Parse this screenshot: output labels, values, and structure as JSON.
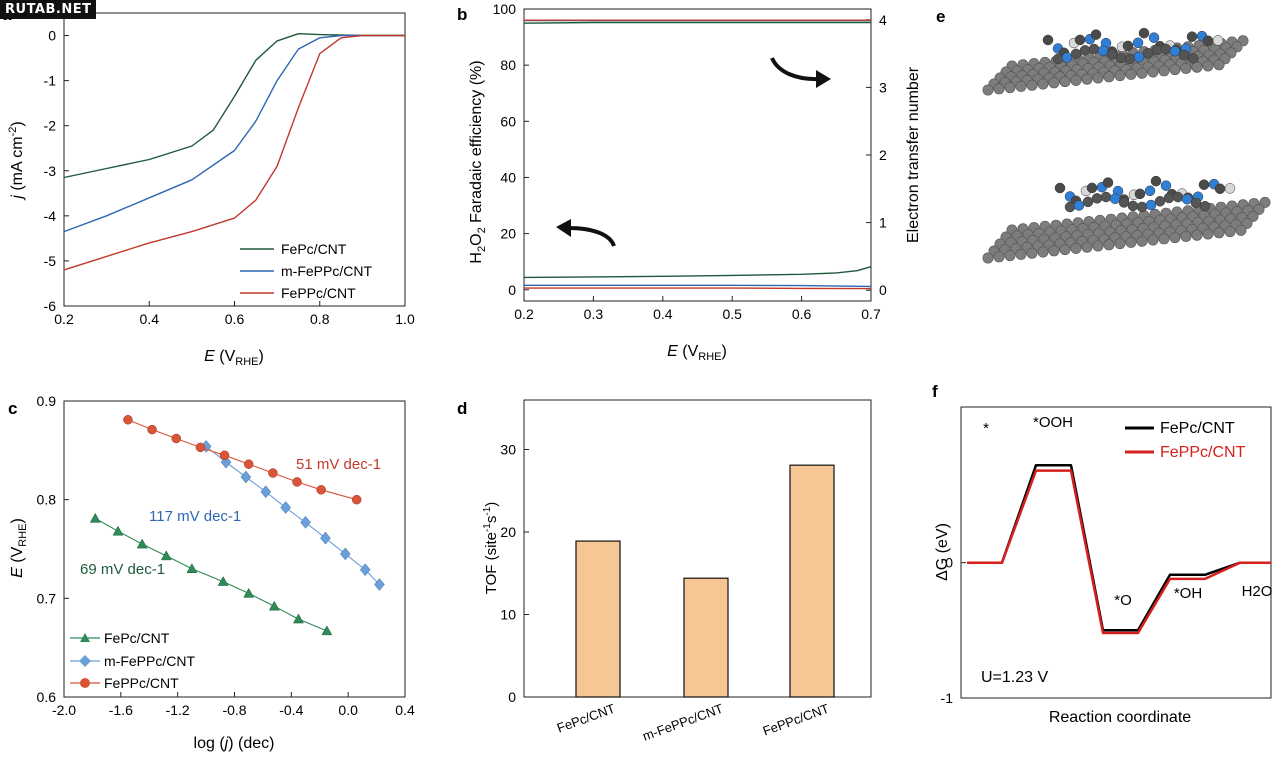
{
  "watermark": "RUTAB.NET",
  "panels": {
    "a": "a",
    "b": "b",
    "c": "c",
    "d": "d",
    "e": "e",
    "f": "f"
  },
  "chart_data": [
    {
      "id": "a",
      "type": "line",
      "xlabel": "E (VRHE)",
      "ylabel": "j (mA cm-2)",
      "xlim": [
        0.2,
        1.0
      ],
      "ylim": [
        -6,
        0.5
      ],
      "xticks": [
        0.2,
        0.4,
        0.6,
        0.8,
        1.0
      ],
      "xtick_labels": [
        "0.2",
        "0.4",
        "0.6",
        "0.8",
        "1.0"
      ],
      "yticks": [
        0,
        -1,
        -2,
        -3,
        -4,
        -5,
        -6
      ],
      "ytick_labels": [
        "0",
        "-1",
        "-2",
        "-3",
        "-4",
        "-5",
        "-6"
      ],
      "legend_position": "bottom-right",
      "series": [
        {
          "name": "FePc/CNT",
          "color": "#1d5a3a",
          "x": [
            0.2,
            0.3,
            0.4,
            0.5,
            0.55,
            0.6,
            0.65,
            0.7,
            0.75,
            0.8,
            0.9,
            1.0
          ],
          "y": [
            -3.15,
            -2.95,
            -2.75,
            -2.45,
            -2.1,
            -1.35,
            -0.55,
            -0.12,
            0.04,
            0.02,
            0.0,
            0.0
          ]
        },
        {
          "name": "m-FePPc/CNT",
          "color": "#2f66b3",
          "x": [
            0.2,
            0.3,
            0.4,
            0.5,
            0.6,
            0.65,
            0.7,
            0.75,
            0.8,
            0.85,
            0.9,
            1.0
          ],
          "y": [
            -4.35,
            -4.0,
            -3.6,
            -3.2,
            -2.55,
            -1.9,
            -1.0,
            -0.3,
            -0.05,
            0.0,
            0.0,
            0.0
          ]
        },
        {
          "name": "FePPc/CNT",
          "color": "#c0392b",
          "x": [
            0.2,
            0.3,
            0.4,
            0.5,
            0.6,
            0.65,
            0.7,
            0.75,
            0.8,
            0.85,
            0.9,
            1.0
          ],
          "y": [
            -5.2,
            -4.9,
            -4.6,
            -4.35,
            -4.05,
            -3.65,
            -2.9,
            -1.6,
            -0.4,
            -0.05,
            0.0,
            0.0
          ]
        }
      ]
    },
    {
      "id": "b",
      "type": "line",
      "xlabel": "E (VRHE)",
      "ylabel": "H2O2 Faradaic efficiency (%)",
      "ylabel_right": "Electron transfer number",
      "xlim": [
        0.2,
        0.7
      ],
      "ylim": [
        -4,
        100
      ],
      "ylim_right": [
        -0.16,
        4.16
      ],
      "xticks": [
        0.2,
        0.3,
        0.4,
        0.5,
        0.6,
        0.7
      ],
      "xtick_labels": [
        "0.2",
        "0.3",
        "0.4",
        "0.5",
        "0.6",
        "0.7"
      ],
      "yticks": [
        0,
        20,
        40,
        60,
        80,
        100
      ],
      "ytick_labels": [
        "0",
        "20",
        "40",
        "60",
        "80",
        "100"
      ],
      "yticks_right": [
        0,
        1,
        2,
        3,
        4
      ],
      "ytick_labels_right": [
        "0",
        "1",
        "2",
        "3",
        "4"
      ],
      "series": [
        {
          "name": "FePc/CNT n",
          "axis": "right",
          "color": "#1d5a3a",
          "x": [
            0.2,
            0.3,
            0.4,
            0.5,
            0.6,
            0.7
          ],
          "y": [
            3.95,
            3.96,
            3.96,
            3.96,
            3.96,
            3.96
          ]
        },
        {
          "name": "m-FePPc/CNT n",
          "axis": "right",
          "color": "#2f66b3",
          "x": [
            0.2,
            0.3,
            0.4,
            0.5,
            0.6,
            0.7
          ],
          "y": [
            3.99,
            3.99,
            3.99,
            3.99,
            3.99,
            3.99
          ]
        },
        {
          "name": "FePPc/CNT n",
          "axis": "right",
          "color": "#c0392b",
          "x": [
            0.2,
            0.3,
            0.4,
            0.5,
            0.6,
            0.7
          ],
          "y": [
            3.995,
            3.995,
            3.995,
            3.995,
            3.995,
            3.995
          ]
        },
        {
          "name": "FePc/CNT FE",
          "axis": "left",
          "color": "#1d5a3a",
          "x": [
            0.2,
            0.3,
            0.4,
            0.5,
            0.6,
            0.65,
            0.68,
            0.7
          ],
          "y": [
            4.4,
            4.6,
            4.8,
            5.1,
            5.5,
            6.0,
            6.8,
            8.2
          ]
        },
        {
          "name": "m-FePPc/CNT FE",
          "axis": "left",
          "color": "#2f66b3",
          "x": [
            0.2,
            0.3,
            0.4,
            0.5,
            0.6,
            0.7
          ],
          "y": [
            1.6,
            1.6,
            1.6,
            1.6,
            1.5,
            1.2
          ]
        },
        {
          "name": "FePPc/CNT FE",
          "axis": "left",
          "color": "#c0392b",
          "x": [
            0.2,
            0.3,
            0.4,
            0.5,
            0.6,
            0.7
          ],
          "y": [
            0.6,
            0.6,
            0.6,
            0.6,
            0.5,
            0.4
          ]
        }
      ]
    },
    {
      "id": "c",
      "type": "line",
      "xlabel": "log (j) (dec)",
      "ylabel": "E (VRHE)",
      "xlim": [
        -2.0,
        0.4
      ],
      "ylim": [
        0.6,
        0.9
      ],
      "xticks": [
        -2.0,
        -1.6,
        -1.2,
        -0.8,
        -0.4,
        0.0,
        0.4
      ],
      "xtick_labels": [
        "-2.0",
        "-1.6",
        "-1.2",
        "-0.8",
        "-0.4",
        "0.0",
        "0.4"
      ],
      "yticks": [
        0.6,
        0.7,
        0.8,
        0.9
      ],
      "ytick_labels": [
        "0.6",
        "0.7",
        "0.8",
        "0.9"
      ],
      "legend_position": "bottom-left",
      "annotations": [
        "51 mV dec-1",
        "117 mV dec-1",
        "69 mV dec-1"
      ],
      "series": [
        {
          "name": "FePc/CNT",
          "marker": "triangle",
          "color": "#2e8b57",
          "x": [
            -1.78,
            -1.62,
            -1.45,
            -1.28,
            -1.1,
            -0.88,
            -0.7,
            -0.52,
            -0.35,
            -0.15
          ],
          "y": [
            0.781,
            0.768,
            0.755,
            0.743,
            0.73,
            0.717,
            0.705,
            0.692,
            0.679,
            0.667
          ]
        },
        {
          "name": "m-FePPc/CNT",
          "marker": "diamond",
          "color": "#6a9fd8",
          "x": [
            -1.0,
            -0.86,
            -0.72,
            -0.58,
            -0.44,
            -0.3,
            -0.16,
            -0.02,
            0.12,
            0.22
          ],
          "y": [
            0.854,
            0.838,
            0.823,
            0.808,
            0.792,
            0.777,
            0.761,
            0.745,
            0.729,
            0.714
          ]
        },
        {
          "name": "FePPc/CNT",
          "marker": "circle",
          "color": "#d9553a",
          "x": [
            -1.55,
            -1.38,
            -1.21,
            -1.04,
            -0.87,
            -0.7,
            -0.53,
            -0.36,
            -0.19,
            0.06
          ],
          "y": [
            0.881,
            0.871,
            0.862,
            0.853,
            0.845,
            0.836,
            0.827,
            0.818,
            0.81,
            0.8
          ]
        }
      ]
    },
    {
      "id": "d",
      "type": "bar",
      "ylabel": "TOF (site-1s-1)",
      "ylim": [
        0,
        36
      ],
      "yticks": [
        0,
        10,
        20,
        30
      ],
      "ytick_labels": [
        "0",
        "10",
        "20",
        "30"
      ],
      "categories": [
        "FePc/CNT",
        "m-FePPc/CNT",
        "FePPc/CNT"
      ],
      "values": [
        18.9,
        14.4,
        28.1
      ],
      "bar_color": "#f6c792"
    },
    {
      "id": "f",
      "type": "line",
      "xlabel": "Reaction coordinate",
      "ylabel": "ΔG (eV)",
      "ylim": [
        -1,
        1.15
      ],
      "yticks": [
        -1,
        0
      ],
      "ytick_labels": [
        "-1",
        "0"
      ],
      "steps": [
        "*",
        "*OOH",
        "*O",
        "*OH",
        "H2O"
      ],
      "legend_position": "top-right",
      "annotation": "U=1.23 V",
      "series": [
        {
          "name": "FePc/CNT",
          "color": "#000000",
          "values": [
            0.0,
            0.72,
            -0.5,
            -0.09,
            0.0
          ]
        },
        {
          "name": "FePPc/CNT",
          "color": "#d62020",
          "values": [
            0.0,
            0.68,
            -0.52,
            -0.12,
            0.0
          ]
        }
      ]
    }
  ]
}
